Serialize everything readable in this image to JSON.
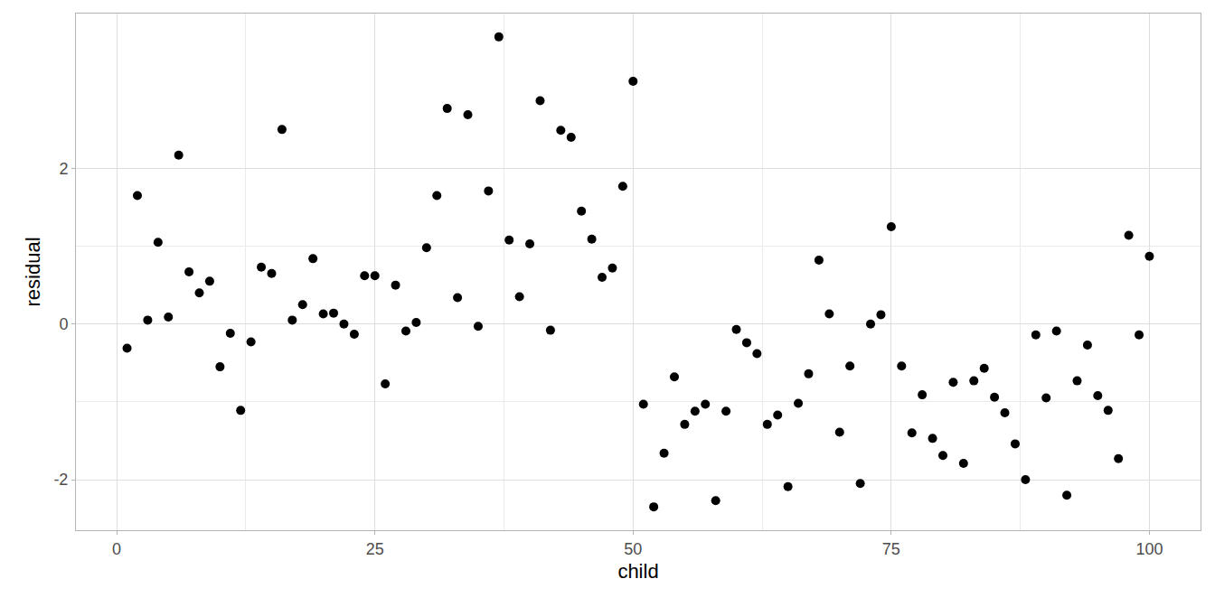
{
  "chart_data": {
    "type": "scatter",
    "x_label": "child",
    "y_label": "residual",
    "x": [
      1,
      2,
      3,
      4,
      5,
      6,
      7,
      8,
      9,
      10,
      11,
      12,
      13,
      14,
      15,
      16,
      17,
      18,
      19,
      20,
      21,
      22,
      23,
      24,
      25,
      26,
      27,
      28,
      29,
      30,
      31,
      32,
      33,
      34,
      35,
      36,
      37,
      38,
      39,
      40,
      41,
      42,
      43,
      44,
      45,
      46,
      47,
      48,
      49,
      50,
      51,
      52,
      53,
      54,
      55,
      56,
      57,
      58,
      59,
      60,
      61,
      62,
      63,
      64,
      65,
      66,
      67,
      68,
      69,
      70,
      71,
      72,
      73,
      74,
      75,
      76,
      77,
      78,
      79,
      80,
      81,
      82,
      83,
      84,
      85,
      86,
      87,
      88,
      89,
      90,
      91,
      92,
      93,
      94,
      95,
      96,
      97,
      98,
      99,
      100
    ],
    "values": [
      -0.31,
      1.65,
      0.05,
      1.05,
      0.09,
      2.17,
      0.67,
      0.4,
      0.55,
      -0.55,
      -0.12,
      -1.11,
      -0.23,
      0.73,
      0.65,
      2.5,
      0.05,
      0.25,
      0.84,
      0.13,
      0.14,
      0.0,
      -0.13,
      0.62,
      0.62,
      -0.77,
      0.5,
      -0.09,
      0.02,
      0.98,
      1.65,
      2.77,
      0.34,
      2.69,
      -0.03,
      1.71,
      3.69,
      1.08,
      0.35,
      1.03,
      2.87,
      -0.08,
      2.49,
      2.4,
      1.45,
      1.09,
      0.6,
      0.72,
      1.77,
      3.12,
      -1.03,
      -2.35,
      -1.66,
      -0.68,
      -1.29,
      -1.12,
      -1.03,
      -2.27,
      -1.12,
      -0.07,
      -0.24,
      -0.38,
      -1.29,
      -1.17,
      -2.09,
      -1.02,
      -0.64,
      0.82,
      0.13,
      -1.39,
      -0.54,
      -2.05,
      0.0,
      0.12,
      1.25,
      -0.54,
      -1.4,
      -0.91,
      -1.47,
      -1.69,
      -0.75,
      -1.79,
      -0.73,
      -0.57,
      -0.94,
      -1.14,
      -1.54,
      -2.0,
      -0.14,
      -0.95,
      -0.09,
      -2.2,
      -0.73,
      -0.27,
      -0.92,
      -1.11,
      -1.73,
      1.14,
      -0.14,
      0.87
    ],
    "color": "#000000",
    "marker": "circle",
    "xlim": [
      -3.95,
      104.95
    ],
    "xticks": [
      0,
      25,
      50,
      75,
      100
    ],
    "ylim": [
      -2.65,
      3.99
    ],
    "yticks": [
      -2,
      0,
      2
    ],
    "grid": true
  }
}
